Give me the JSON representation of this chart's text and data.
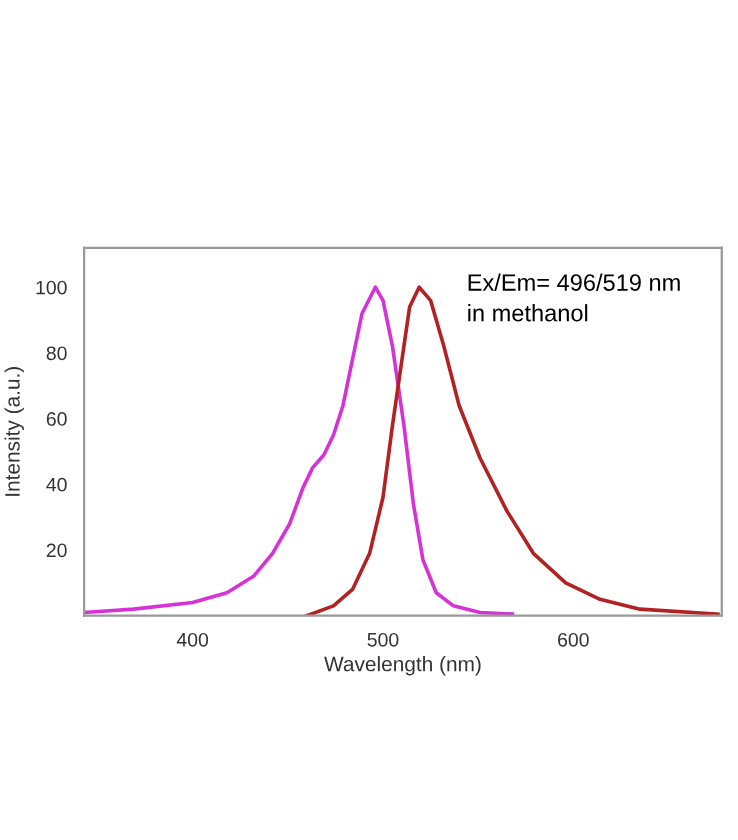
{
  "chart_data": {
    "type": "line",
    "xlabel": "Wavelength (nm)",
    "ylabel": "Intensity (a.u.)",
    "xlim": [
      343,
      678
    ],
    "ylim": [
      0,
      112
    ],
    "xticks": [
      400,
      500,
      600
    ],
    "yticks": [
      20,
      40,
      60,
      80,
      100
    ],
    "grid": false,
    "marker": "none",
    "line_style": "solid",
    "annotations": [
      "Ex/Em= 496/519 nm\nin methanol"
    ],
    "series": [
      {
        "color": "#d633d6",
        "x": [
          343,
          369,
          400,
          418,
          432,
          442,
          451,
          458,
          463,
          469,
          474,
          479,
          484,
          489,
          496,
          500,
          505,
          511,
          516,
          521,
          528,
          537,
          551,
          568
        ],
        "values": [
          1,
          2,
          4,
          7,
          12,
          19,
          28,
          39,
          45,
          49,
          55,
          64,
          78,
          92,
          100,
          96,
          82,
          58,
          34,
          17,
          7,
          3,
          1,
          0.5
        ]
      },
      {
        "color": "#b22222",
        "x": [
          460,
          474,
          484,
          493,
          500,
          505,
          511,
          514,
          519,
          525,
          532,
          540,
          551,
          565,
          579,
          596,
          614,
          635,
          676
        ],
        "values": [
          0,
          3,
          8,
          19,
          36,
          58,
          82,
          94,
          100,
          96,
          82,
          64,
          48,
          32,
          19,
          10,
          5,
          2,
          0.5
        ]
      }
    ]
  }
}
